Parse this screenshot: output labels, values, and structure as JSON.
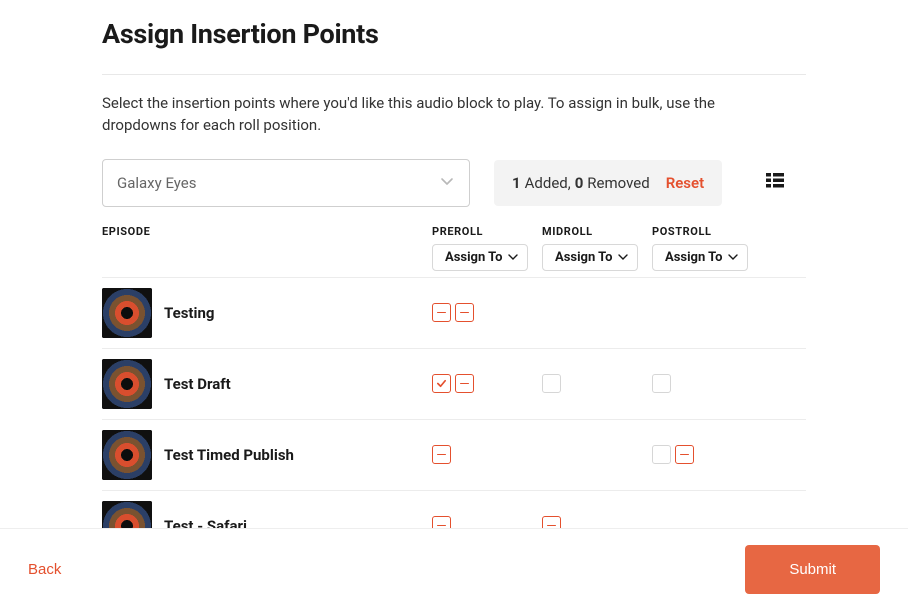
{
  "header": {
    "title": "Assign Insertion Points",
    "description": "Select the insertion points where you'd like this audio block to play. To assign in bulk, use the dropdowns for each roll position."
  },
  "filter": {
    "selected": "Galaxy Eyes"
  },
  "summary": {
    "addedCount": "1",
    "addedLabel": " Added, ",
    "removedCount": "0",
    "removedLabel": " Removed",
    "resetLabel": "Reset"
  },
  "columns": {
    "episode": "EPISODE",
    "preroll": "PREROLL",
    "midroll": "MIDROLL",
    "postroll": "POSTROLL",
    "assignTo": "Assign To"
  },
  "episodes": [
    {
      "title": "Testing",
      "preroll": [
        "minus",
        "minus"
      ],
      "midroll": [],
      "postroll": []
    },
    {
      "title": "Test Draft",
      "preroll": [
        "check",
        "minus"
      ],
      "midroll": [
        "empty"
      ],
      "postroll": [
        "empty"
      ]
    },
    {
      "title": "Test Timed Publish",
      "preroll": [
        "minus"
      ],
      "midroll": [],
      "postroll": [
        "empty",
        "minus"
      ]
    },
    {
      "title": "Test - Safari",
      "preroll": [
        "minus"
      ],
      "midroll": [
        "minus"
      ],
      "postroll": []
    }
  ],
  "footer": {
    "back": "Back",
    "submit": "Submit"
  },
  "colors": {
    "accent": "#e4502e",
    "submitBg": "#e76743",
    "border": "#d8d8d8",
    "pillBg": "#f3f3f3"
  }
}
